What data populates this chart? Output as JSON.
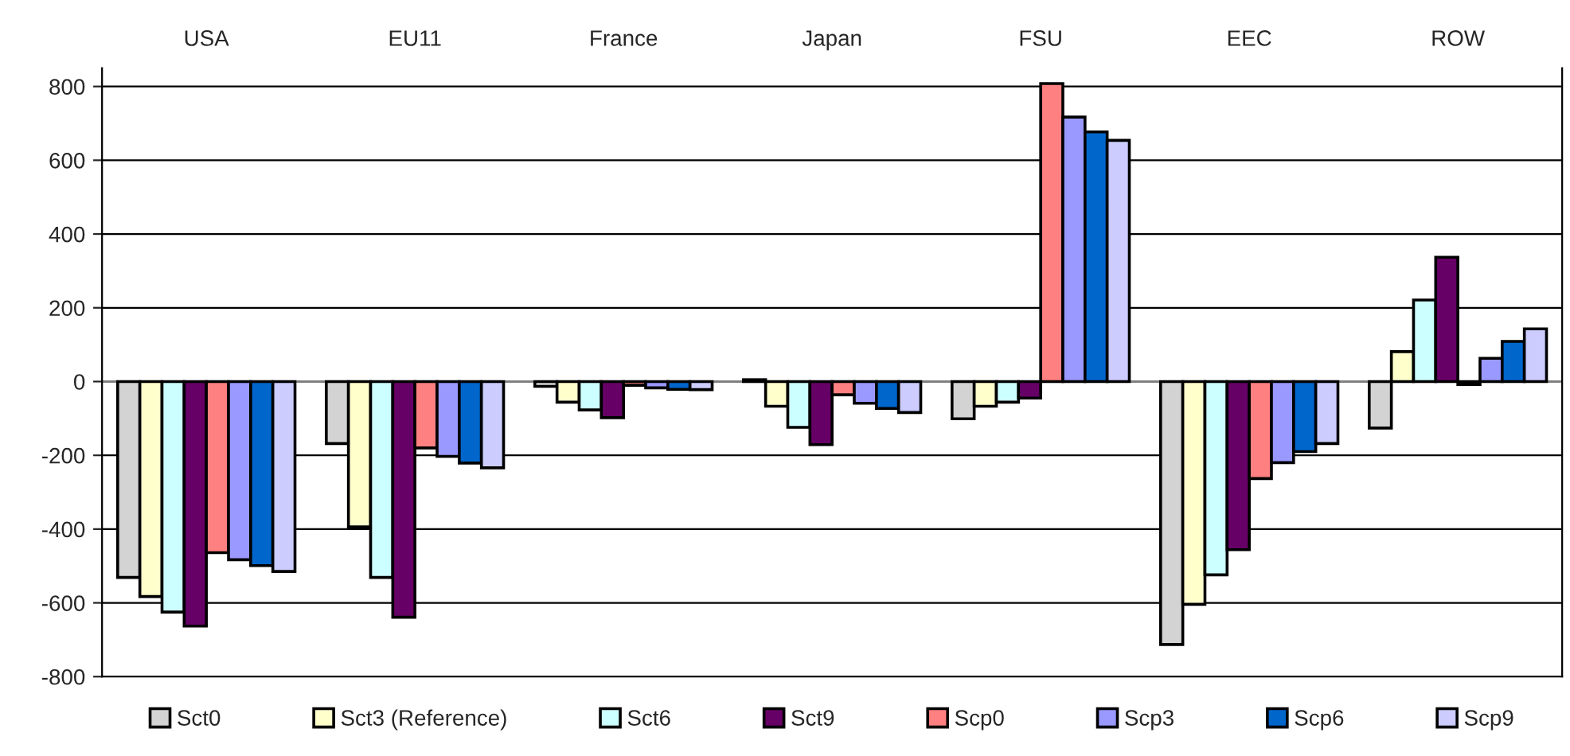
{
  "chart_data": {
    "type": "bar",
    "categories": [
      "USA",
      "EU11",
      "France",
      "Japan",
      "FSU",
      "EEC",
      "ROW"
    ],
    "series": [
      {
        "name": "Sct0",
        "color": "#d3d3d3",
        "values": [
          -531,
          -168,
          -13,
          5,
          -101,
          -713,
          -126
        ]
      },
      {
        "name": "Sct3 (Reference)",
        "color": "#ffffcc",
        "values": [
          -583,
          -394,
          -56,
          -67,
          -67,
          -604,
          81
        ]
      },
      {
        "name": "Sct6",
        "color": "#ccffff",
        "values": [
          -625,
          -531,
          -77,
          -124,
          -56,
          -524,
          221
        ]
      },
      {
        "name": "Sct9",
        "color": "#660066",
        "values": [
          -663,
          -639,
          -98,
          -171,
          -45,
          -456,
          337
        ]
      },
      {
        "name": "Scp0",
        "color": "#ff8080",
        "values": [
          -464,
          -180,
          -10,
          -36,
          808,
          -263,
          -8
        ]
      },
      {
        "name": "Scp3",
        "color": "#9999ff",
        "values": [
          -483,
          -203,
          -17,
          -59,
          717,
          -220,
          63
        ]
      },
      {
        "name": "Scp6",
        "color": "#0066cc",
        "values": [
          -499,
          -221,
          -21,
          -73,
          677,
          -190,
          109
        ]
      },
      {
        "name": "Scp9",
        "color": "#ccccff",
        "values": [
          -515,
          -234,
          -22,
          -84,
          654,
          -168,
          143
        ]
      }
    ],
    "ylim": [
      -800,
      850
    ],
    "yticks": [
      -800,
      -600,
      -400,
      -200,
      0,
      200,
      400,
      600,
      800
    ],
    "grid": "y",
    "legend": "bottom"
  }
}
